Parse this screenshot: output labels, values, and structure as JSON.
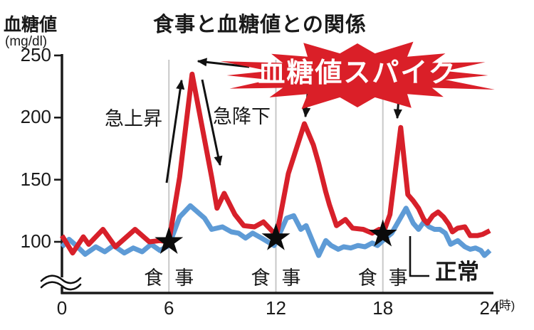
{
  "page": {
    "background": "#ffffff"
  },
  "chart_data": {
    "type": "line",
    "title": "食事と血糖値との関係",
    "ylabel": "血糖値",
    "y_unit": "(mg/dl)",
    "x_unit": "(時)",
    "xticks": [
      0,
      6,
      12,
      18,
      24
    ],
    "yticks": [
      250,
      200,
      150,
      100
    ],
    "xlim": [
      0,
      24
    ],
    "ylim": [
      100,
      250
    ],
    "y_axis_break": true,
    "grid": "vertical gray lines at meal hours only",
    "legend_position": "none (inline labels)",
    "meals": {
      "label": "食事",
      "hours": [
        6,
        12,
        18
      ],
      "marker": "black-star",
      "marker_values": [
        100,
        103,
        106
      ]
    },
    "annotations": {
      "spike_badge": "血糖値スパイク",
      "rapid_rise": "急上昇",
      "rapid_fall": "急降下",
      "normal_label": "正常"
    },
    "series": [
      {
        "name": "血糖値スパイク",
        "color": "#d7202a",
        "points": [
          [
            0,
            105
          ],
          [
            0.6,
            91
          ],
          [
            1.2,
            104
          ],
          [
            1.5,
            98
          ],
          [
            2.3,
            110
          ],
          [
            3,
            96
          ],
          [
            4.1,
            110
          ],
          [
            4.9,
            100
          ],
          [
            5.5,
            101
          ],
          [
            6,
            100
          ],
          [
            6.6,
            152
          ],
          [
            7.3,
            235
          ],
          [
            8.4,
            152
          ],
          [
            8.7,
            127
          ],
          [
            9.1,
            139
          ],
          [
            9.7,
            122
          ],
          [
            10.2,
            113
          ],
          [
            10.8,
            112
          ],
          [
            11.3,
            116
          ],
          [
            11.9,
            107
          ],
          [
            12,
            102
          ],
          [
            12.7,
            155
          ],
          [
            13.6,
            195
          ],
          [
            14.1,
            178
          ],
          [
            14.4,
            163
          ],
          [
            14.8,
            140
          ],
          [
            15,
            130
          ],
          [
            15.4,
            113
          ],
          [
            15.9,
            118
          ],
          [
            16.3,
            111
          ],
          [
            16.9,
            110
          ],
          [
            17.4,
            107
          ],
          [
            17.8,
            110
          ],
          [
            18,
            106
          ],
          [
            18.4,
            122
          ],
          [
            19,
            192
          ],
          [
            19.4,
            138
          ],
          [
            19.7,
            133
          ],
          [
            20,
            127
          ],
          [
            20.3,
            118
          ],
          [
            20.5,
            115
          ],
          [
            20.8,
            121
          ],
          [
            21.1,
            124
          ],
          [
            21.4,
            120
          ],
          [
            21.7,
            114
          ],
          [
            21.9,
            108
          ],
          [
            22.2,
            111
          ],
          [
            22.6,
            112
          ],
          [
            22.9,
            105
          ],
          [
            23.3,
            105
          ],
          [
            23.6,
            106
          ],
          [
            24,
            109
          ]
        ]
      },
      {
        "name": "正常",
        "color": "#5e9bd6",
        "points": [
          [
            0,
            96
          ],
          [
            0.4,
            102
          ],
          [
            0.8,
            97
          ],
          [
            1.3,
            90
          ],
          [
            1.9,
            96
          ],
          [
            2.4,
            92
          ],
          [
            2.9,
            97
          ],
          [
            3.5,
            91
          ],
          [
            4,
            95
          ],
          [
            4.5,
            92
          ],
          [
            5,
            98
          ],
          [
            5.5,
            93
          ],
          [
            6,
            97
          ],
          [
            6.6,
            120
          ],
          [
            7.2,
            129
          ],
          [
            8,
            119
          ],
          [
            8.4,
            110
          ],
          [
            9,
            112
          ],
          [
            9.5,
            108
          ],
          [
            9.9,
            107
          ],
          [
            10.3,
            103
          ],
          [
            10.7,
            107
          ],
          [
            11.2,
            103
          ],
          [
            11.9,
            97
          ],
          [
            12,
            100
          ],
          [
            12.6,
            119
          ],
          [
            13,
            121
          ],
          [
            13.4,
            110
          ],
          [
            13.7,
            113
          ],
          [
            14.1,
            99
          ],
          [
            14.4,
            89
          ],
          [
            14.8,
            101
          ],
          [
            15.1,
            97
          ],
          [
            15.5,
            94
          ],
          [
            15.8,
            96
          ],
          [
            16.2,
            95
          ],
          [
            16.6,
            97
          ],
          [
            17,
            96
          ],
          [
            17.4,
            99
          ],
          [
            17.7,
            97
          ],
          [
            18,
            101
          ],
          [
            18.5,
            107
          ],
          [
            19.3,
            127
          ],
          [
            19.7,
            115
          ],
          [
            20,
            110
          ],
          [
            20.3,
            116
          ],
          [
            20.6,
            112
          ],
          [
            20.9,
            110
          ],
          [
            21.2,
            110
          ],
          [
            21.5,
            107
          ],
          [
            21.8,
            98
          ],
          [
            22.2,
            101
          ],
          [
            22.6,
            96
          ],
          [
            22.9,
            94
          ],
          [
            23.2,
            95
          ],
          [
            23.5,
            93
          ],
          [
            23.7,
            89
          ],
          [
            24,
            93
          ]
        ]
      }
    ],
    "colors": {
      "spike_red": "#d7202a",
      "normal_blue": "#5e9bd6",
      "badge_red": "#da1f28",
      "grid_gray": "#c8c8c8",
      "axis_black": "#1a1a1a"
    }
  }
}
